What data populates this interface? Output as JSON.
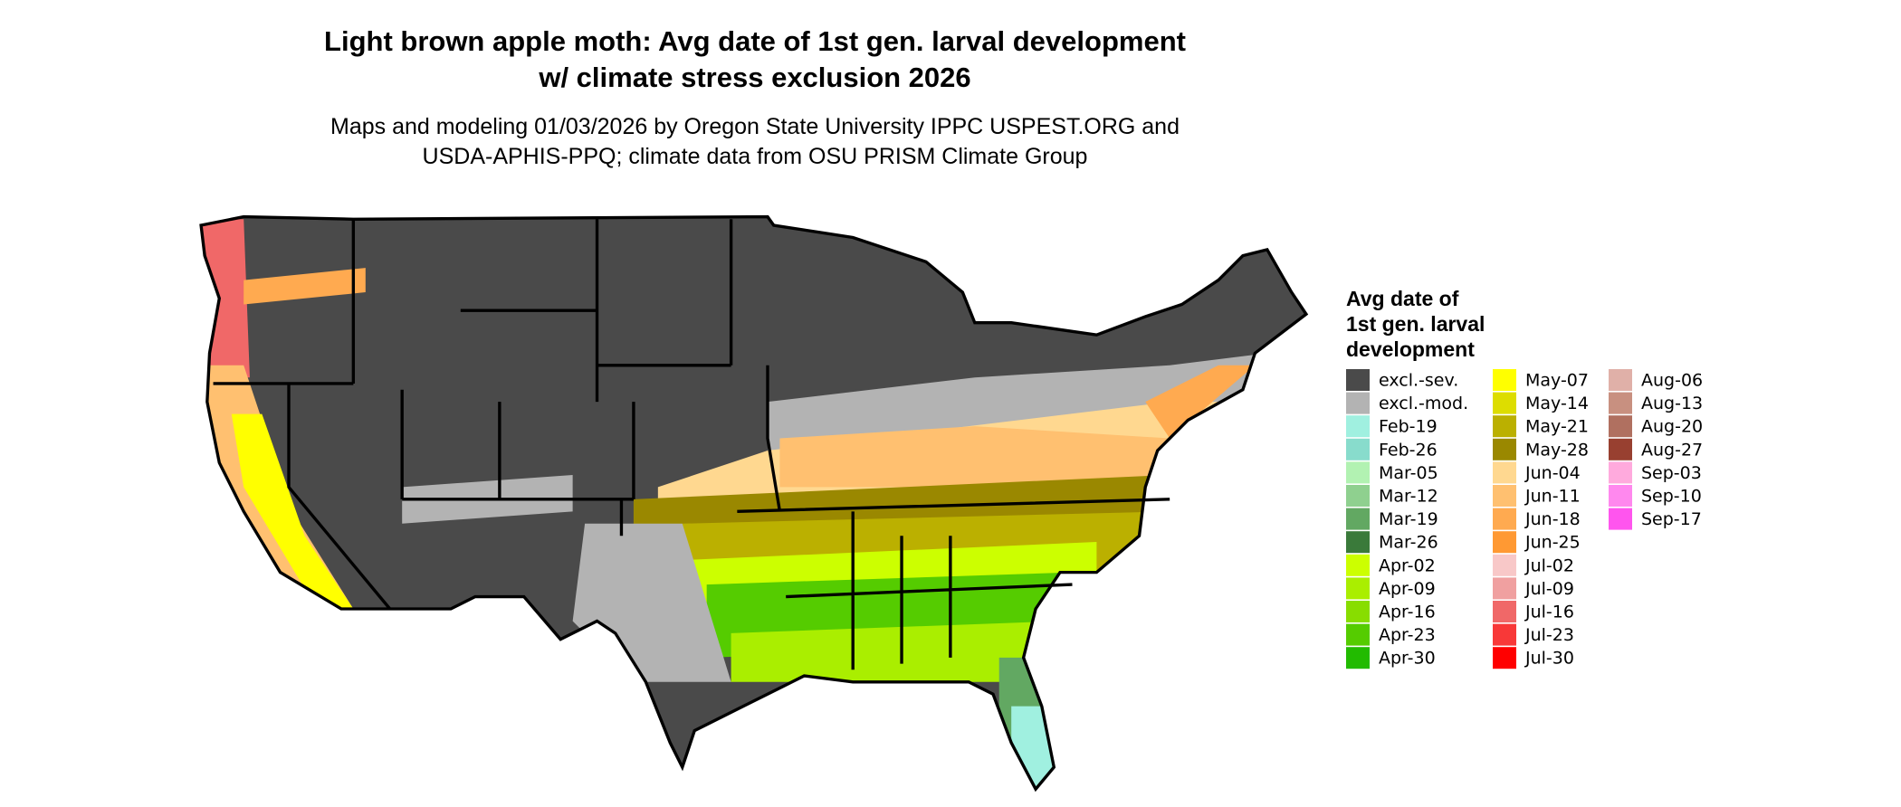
{
  "title": [
    "Light brown apple moth: Avg date of 1st gen. larval development",
    "w/ climate stress exclusion 2026"
  ],
  "subtitle": [
    "Maps and modeling 01/03/2026 by Oregon State University IPPC USPEST.ORG and",
    "USDA-APHIS-PPQ; climate data from OSU PRISM Climate Group"
  ],
  "legend": {
    "title": [
      "Avg date of",
      "1st gen. larval",
      "development"
    ],
    "items": [
      {
        "label": "excl.-sev.",
        "color": "#4a4a4a"
      },
      {
        "label": "excl.-mod.",
        "color": "#b3b3b3"
      },
      {
        "label": "Feb-19",
        "color": "#a0f0e0"
      },
      {
        "label": "Feb-26",
        "color": "#88dccc"
      },
      {
        "label": "Mar-05",
        "color": "#b2f2b2"
      },
      {
        "label": "Mar-12",
        "color": "#8fd08f"
      },
      {
        "label": "Mar-19",
        "color": "#62a862"
      },
      {
        "label": "Mar-26",
        "color": "#3a7a3a"
      },
      {
        "label": "Apr-02",
        "color": "#ccff00"
      },
      {
        "label": "Apr-09",
        "color": "#aaee00"
      },
      {
        "label": "Apr-16",
        "color": "#88dd00"
      },
      {
        "label": "Apr-23",
        "color": "#55cc00"
      },
      {
        "label": "Apr-30",
        "color": "#22bb00"
      },
      {
        "label": "May-07",
        "color": "#ffff00"
      },
      {
        "label": "May-14",
        "color": "#dddd00"
      },
      {
        "label": "May-21",
        "color": "#bbb000"
      },
      {
        "label": "May-28",
        "color": "#9a8800"
      },
      {
        "label": "Jun-04",
        "color": "#ffd890"
      },
      {
        "label": "Jun-11",
        "color": "#ffc070"
      },
      {
        "label": "Jun-18",
        "color": "#ffaa50"
      },
      {
        "label": "Jun-25",
        "color": "#ff9933"
      },
      {
        "label": "Jul-02",
        "color": "#f8c8c8"
      },
      {
        "label": "Jul-09",
        "color": "#f0a0a0"
      },
      {
        "label": "Jul-16",
        "color": "#f06868"
      },
      {
        "label": "Jul-23",
        "color": "#f83838"
      },
      {
        "label": "Jul-30",
        "color": "#ff0000"
      },
      {
        "label": "Aug-06",
        "color": "#e0b0a8"
      },
      {
        "label": "Aug-13",
        "color": "#c89080"
      },
      {
        "label": "Aug-20",
        "color": "#b07060"
      },
      {
        "label": "Aug-27",
        "color": "#984030"
      },
      {
        "label": "Sep-03",
        "color": "#ffaadd"
      },
      {
        "label": "Sep-10",
        "color": "#ff88ee"
      },
      {
        "label": "Sep-17",
        "color": "#ff55ee"
      }
    ]
  }
}
